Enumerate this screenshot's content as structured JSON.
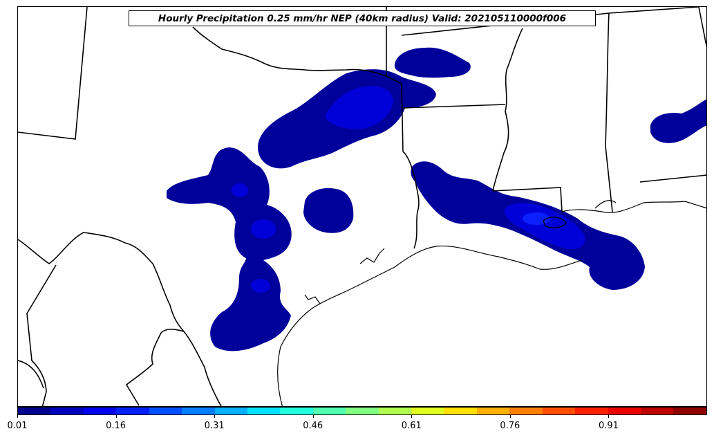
{
  "title": "Hourly Precipitation 0.25 mm/hr NEP (40km radius) Valid: 202105110000f006",
  "colorbar": {
    "colors": [
      "#00008f",
      "#0000bf",
      "#0000ef",
      "#0020ff",
      "#0050ff",
      "#0080ff",
      "#00b0ff",
      "#00e0ff",
      "#20ffe0",
      "#50ffb0",
      "#80ff80",
      "#b0ff50",
      "#e0ff20",
      "#ffe000",
      "#ffb000",
      "#ff8000",
      "#ff5000",
      "#ff2000",
      "#ef0000",
      "#bf0000",
      "#8f0000"
    ],
    "tick_labels": [
      "0.01",
      "0.16",
      "0.31",
      "0.46",
      "0.61",
      "0.76",
      "0.91"
    ],
    "range": [
      0.01,
      1.0
    ]
  },
  "precip_colors": {
    "low": "#00009b",
    "mid": "#0000d8",
    "high": "#0a10ff"
  }
}
